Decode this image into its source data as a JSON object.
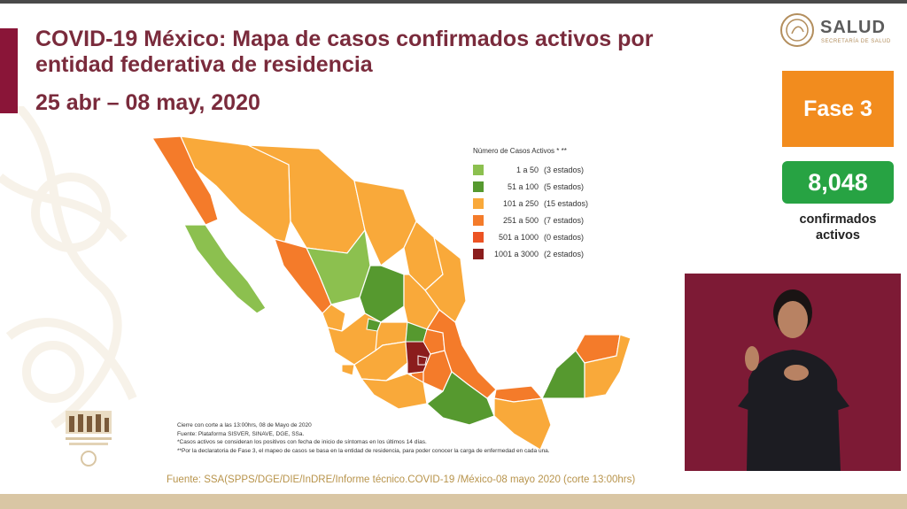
{
  "header": {
    "title": "COVID-19 México: Mapa de casos confirmados activos por entidad federativa de residencia",
    "date_range": "25 abr – 08 may, 2020"
  },
  "logo": {
    "name": "SALUD",
    "subtitle": "SECRETARÍA DE SALUD"
  },
  "phase": {
    "label": "Fase 3",
    "color": "#f28c1e"
  },
  "active": {
    "count": "8,048",
    "label": "confirmados activos",
    "color": "#27a343"
  },
  "legend": {
    "title": "Número de Casos Activos * **",
    "items": [
      {
        "range": "1 a 50",
        "count": "(3 estados)",
        "color": "#8cc04f"
      },
      {
        "range": "51 a 100",
        "count": "(5 estados)",
        "color": "#56992f"
      },
      {
        "range": "101 a 250",
        "count": "(15 estados)",
        "color": "#f9a93a"
      },
      {
        "range": "251 a 500",
        "count": "(7 estados)",
        "color": "#f47b2a"
      },
      {
        "range": "501 a 1000",
        "count": "(0 estados)",
        "color": "#ec5323"
      },
      {
        "range": "1001 a 3000",
        "count": "(2 estados)",
        "color": "#8b1d1d"
      }
    ]
  },
  "notes": [
    "Cierre con corte a las 13:00hrs, 08 de Mayo de 2020",
    "Fuente: Plataforma SISVER, SINAVE, DGE, SSa.",
    "*Casos activos se consideran los positivos con fecha de inicio de síntomas en los últimos 14 días.",
    "**Por la declaratoria de Fase 3, el mapeo de casos se basa en la entidad de residencia, para poder conocer la carga de enfermedad en cada una."
  ],
  "source": "Fuente: SSA(SPPS/DGE/DIE/InDRE/Informe técnico.COVID-19 /México-08 mayo 2020 (corte 13:00hrs)",
  "colors": {
    "brand_red": "#8a1538",
    "gold": "#b8944c"
  }
}
